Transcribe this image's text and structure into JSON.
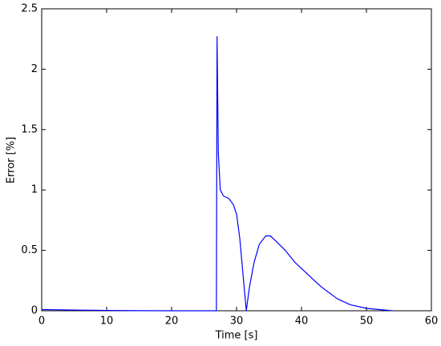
{
  "chart_data": {
    "type": "line",
    "x_label": "Time [s]",
    "y_label": "Error [%]",
    "x": [
      0,
      3,
      6,
      10,
      15,
      20,
      26.9,
      27.0,
      27.2,
      27.5,
      28,
      28.8,
      29.5,
      30,
      30.5,
      31,
      31.5,
      32,
      32.7,
      33.5,
      34.5,
      35.2,
      36,
      37.5,
      39,
      41,
      43,
      45.5,
      47.5,
      50,
      52,
      54
    ],
    "values": [
      0.01,
      0.008,
      0.005,
      0.003,
      0.001,
      0,
      0,
      2.27,
      1.3,
      1.0,
      0.95,
      0.93,
      0.88,
      0.8,
      0.6,
      0.3,
      0,
      0.2,
      0.4,
      0.55,
      0.62,
      0.62,
      0.58,
      0.5,
      0.4,
      0.3,
      0.2,
      0.1,
      0.05,
      0.02,
      0.01,
      0
    ],
    "color": "#0000ff",
    "xlim": [
      0,
      60
    ],
    "xticks": [
      0,
      10,
      20,
      30,
      40,
      50,
      60
    ],
    "ylim": [
      0,
      2.5
    ],
    "yticks": [
      0,
      0.5,
      1,
      1.5,
      2,
      2.5
    ],
    "grid": false
  }
}
